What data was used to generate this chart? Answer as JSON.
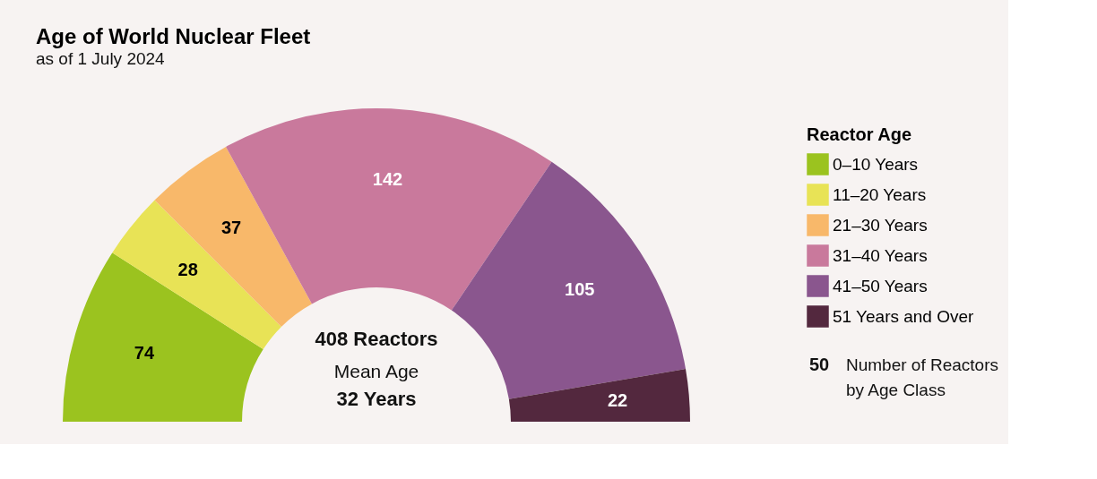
{
  "chart_data": {
    "type": "donut",
    "title": "Age of World Nuclear Fleet",
    "subtitle": "as of 1 July 2024",
    "legend_title": "Reactor Age",
    "categories": [
      "0–10 Years",
      "11–20 Years",
      "21–30 Years",
      "31–40 Years",
      "41–50 Years",
      "51 Years and Over"
    ],
    "values": [
      74,
      28,
      37,
      142,
      105,
      22
    ],
    "colors": [
      "#9bc31f",
      "#e8e356",
      "#f8b86a",
      "#c9799c",
      "#8a568e",
      "#53283e"
    ],
    "data_labels": true,
    "legend": "right",
    "annotations": [
      "408 Reactors",
      "Mean Age",
      "32 Years",
      "50",
      "Number of Reactors",
      "by Age Class"
    ]
  }
}
